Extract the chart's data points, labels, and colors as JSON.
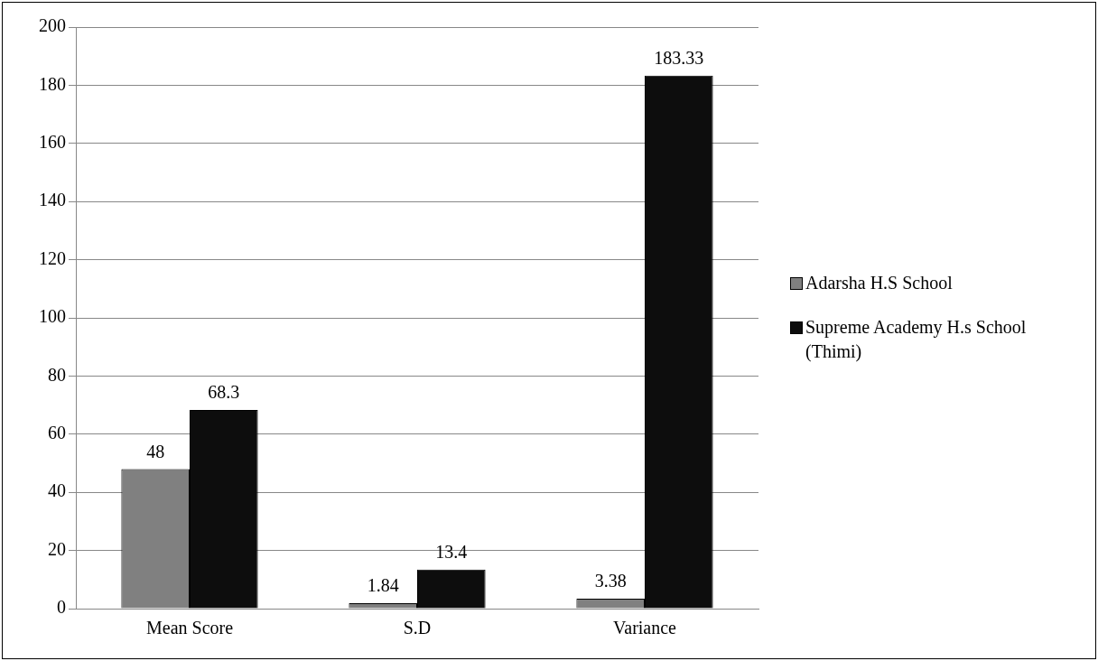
{
  "chart_data": {
    "type": "bar",
    "categories": [
      "Mean Score",
      "S.D",
      "Variance"
    ],
    "series": [
      {
        "name": "Adarsha H.S School",
        "color": "#808080",
        "values": [
          48,
          1.84,
          3.38
        ]
      },
      {
        "name": "Supreme Academy H.s School (Thimi)",
        "color": "#0d0d0d",
        "values": [
          68.3,
          13.4,
          183.33
        ]
      }
    ],
    "ylim": [
      0,
      200
    ],
    "yticks": [
      0,
      20,
      40,
      60,
      80,
      100,
      120,
      140,
      160,
      180,
      200
    ],
    "grid": "y",
    "legend": "right",
    "data_labels": true
  }
}
